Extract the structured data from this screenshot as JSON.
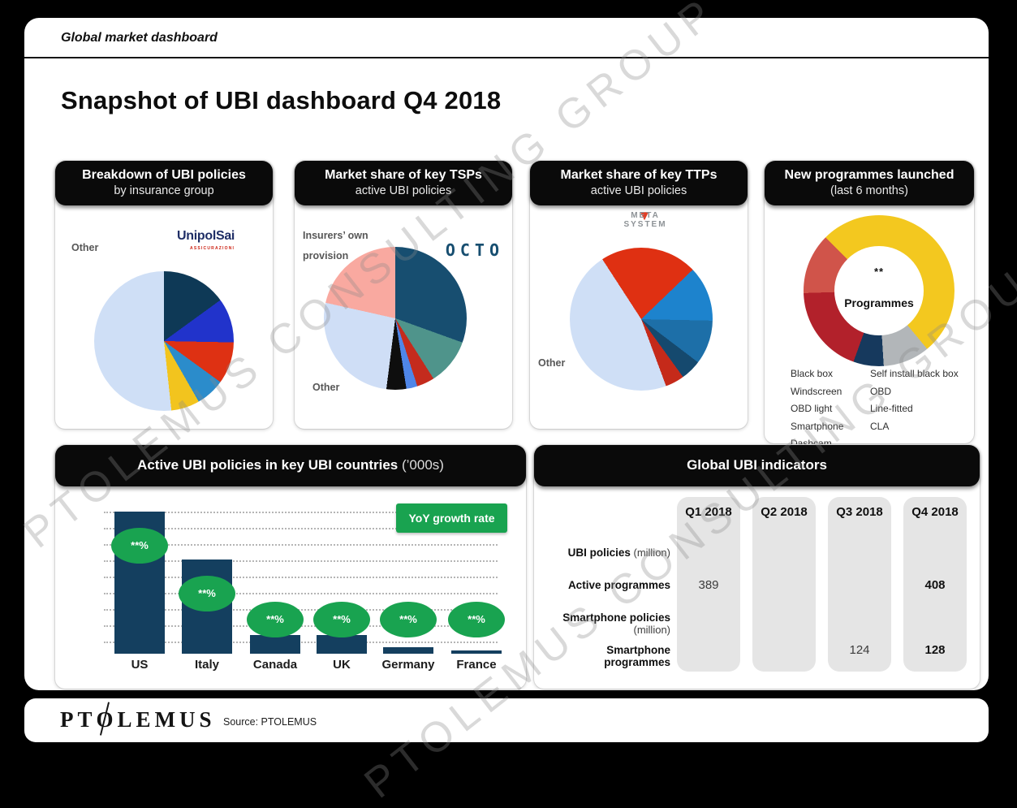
{
  "page": {
    "eyebrow": "Global market dashboard",
    "title": "Snapshot of UBI dashboard Q4 2018",
    "watermark": "PTOLEMUS CONSULTING GROUP COPY RIGHT",
    "footer": {
      "logo": "PTOLEMUS",
      "source": "Source: PTOLEMUS"
    }
  },
  "panels": {
    "insurance_pie": {
      "title": "Breakdown of UBI policies",
      "subtitle": "by insurance group",
      "other_label": "Other",
      "logo_main": "UnipolSai",
      "logo_sub": "ASSICURAZIONI"
    },
    "tsp_pie": {
      "title": "Market share of key TSPs",
      "subtitle": "active UBI policies",
      "own_label_line1": "Insurers’ own",
      "own_label_line2": "provision",
      "other_label": "Other",
      "logo": "OCTO"
    },
    "ttp_pie": {
      "title": "Market share of key TTPs",
      "subtitle": "active UBI policies",
      "other_label": "Other",
      "logo_line1": "META",
      "logo_line2": "SYSTEM",
      "logo_triangle": "▼"
    },
    "programmes_donut": {
      "title": "New programmes launched",
      "subtitle": "(last 6 months)",
      "center_value": "**",
      "center_label": "Programmes",
      "legend_col1": [
        "Black box",
        "Windscreen",
        "OBD light",
        "Smartphone",
        "Dashcam"
      ],
      "legend_col2": [
        "Self install black box",
        "OBD",
        "Line-fitted",
        "CLA"
      ]
    },
    "countries_bar": {
      "title": "Active UBI policies in key UBI countries",
      "unit_suffix": " (’000s)",
      "legend_button": "YoY growth rate"
    },
    "indicators": {
      "title": "Global UBI indicators",
      "columns": [
        "Q1 2018",
        "Q2 2018",
        "Q3 2018",
        "Q4 2018"
      ],
      "rows": [
        {
          "label": "UBI policies",
          "unit": " (million)",
          "values": [
            "",
            "",
            "",
            ""
          ]
        },
        {
          "label": "Active programmes",
          "unit": "",
          "values": [
            "389",
            "",
            "",
            "408"
          ]
        },
        {
          "label": "Smartphone policies",
          "unit": " (million)",
          "values": [
            "",
            "",
            "",
            ""
          ]
        },
        {
          "label": "Smartphone programmes",
          "unit": "",
          "values": [
            "",
            "",
            "124",
            "128"
          ]
        }
      ],
      "bold_column": "Q4 2018"
    }
  },
  "chart_data": [
    {
      "type": "pie",
      "title": "Breakdown of UBI policies by insurance group",
      "start_angle": 0,
      "slices": [
        {
          "label": "UnipolSai",
          "value": 15.0,
          "color": "#0e3956"
        },
        {
          "label": "unnamed insurer 2",
          "value": 10.3,
          "color": "#2133cb"
        },
        {
          "label": "unnamed insurer 3",
          "value": 9.7,
          "color": "#de3113"
        },
        {
          "label": "unnamed insurer 4",
          "value": 6.7,
          "color": "#2b8ccb"
        },
        {
          "label": "unnamed insurer 5",
          "value": 6.6,
          "color": "#f2c41e"
        },
        {
          "label": "Other",
          "value": 51.7,
          "color": "#cfdff6"
        }
      ],
      "note": "values estimated from slice angles; no numeric labels shown"
    },
    {
      "type": "pie",
      "title": "Market share of key TSPs — active UBI policies",
      "start_angle": 0,
      "slices": [
        {
          "label": "OCTO",
          "value": 30.5,
          "color": "#174e70"
        },
        {
          "label": "unnamed TSP 2",
          "value": 10.5,
          "color": "#4f948b"
        },
        {
          "label": "unnamed TSP 3",
          "value": 4.0,
          "color": "#c42b1d"
        },
        {
          "label": "unnamed TSP 4",
          "value": 2.5,
          "color": "#4f86e8"
        },
        {
          "label": "unnamed TSP 5",
          "value": 4.5,
          "color": "#0e0e0e"
        },
        {
          "label": "Other",
          "value": 26.5,
          "color": "#cfdef6"
        },
        {
          "label": "Insurers' own provision",
          "value": 21.5,
          "color": "#f9a9a0"
        }
      ],
      "note": "values estimated from slice angles; no numeric labels shown"
    },
    {
      "type": "pie",
      "title": "Market share of key TTPs — active UBI policies",
      "start_angle": -33,
      "slices": [
        {
          "label": "Meta System",
          "value": 22.0,
          "color": "#df3012"
        },
        {
          "label": "unnamed TTP 2",
          "value": 12.5,
          "color": "#1d83cd"
        },
        {
          "label": "unnamed TTP 3",
          "value": 10.0,
          "color": "#1d6fa8"
        },
        {
          "label": "unnamed TTP 4",
          "value": 4.7,
          "color": "#15496e"
        },
        {
          "label": "unnamed TTP 5",
          "value": 4.3,
          "color": "#c52a1a"
        },
        {
          "label": "Other",
          "value": 46.5,
          "color": "#cfdff6"
        }
      ],
      "note": "values estimated from slice angles; no numeric labels shown"
    },
    {
      "type": "pie",
      "subtype": "donut",
      "title": "New programmes launched (last 6 months)",
      "start_angle": -45,
      "center_value": "**",
      "center_label": "Programmes",
      "slices": [
        {
          "label": "Black box",
          "value": 51.5,
          "color": "#f3c81f"
        },
        {
          "label": "Self install black box",
          "value": 10.0,
          "color": "#b2b6b9"
        },
        {
          "label": "OBD / Line-fitted / CLA group",
          "value": 6.5,
          "color": "#16395d"
        },
        {
          "label": "Windscreen / OBD light group",
          "value": 19.0,
          "color": "#b2212b"
        },
        {
          "label": "Smartphone / Dashcam group",
          "value": 13.0,
          "color": "#d0544a"
        }
      ],
      "legend": [
        "Black box",
        "Windscreen",
        "OBD light",
        "Smartphone",
        "Dashcam",
        "Self install black box",
        "OBD",
        "Line-fitted",
        "CLA"
      ],
      "note": "total masked as **; slice shares estimated from angles"
    },
    {
      "type": "bar",
      "title": "Active UBI policies in key UBI countries (’000s)",
      "categories": [
        "US",
        "Italy",
        "Canada",
        "UK",
        "Germany",
        "France"
      ],
      "values": [
        100,
        66,
        13,
        13,
        4.5,
        2
      ],
      "values_unit": "relative bar height, % of US bar (numeric values not shown)",
      "bar_labels": [
        "**%",
        "**%",
        "**%",
        "**%",
        "**%",
        "**%"
      ],
      "bar_label_meaning": "YoY growth rate (masked)",
      "bar_color": "#143f5f",
      "label_color": "#19a350",
      "grid": "horizontal dotted",
      "legend": [
        "YoY growth rate"
      ]
    },
    {
      "type": "table",
      "title": "Global UBI indicators",
      "columns": [
        "",
        "Q1 2018",
        "Q2 2018",
        "Q3 2018",
        "Q4 2018"
      ],
      "rows": [
        [
          "UBI policies (million)",
          "",
          "",
          "",
          ""
        ],
        [
          "Active programmes",
          "389",
          "",
          "",
          "408"
        ],
        [
          "Smartphone policies (million)",
          "",
          "",
          "",
          ""
        ],
        [
          "Smartphone programmes",
          "",
          "",
          "124",
          "128"
        ]
      ]
    }
  ],
  "colors": {
    "accent_green": "#19a350",
    "bar_navy": "#143f5f",
    "header_black": "#0a0a0a",
    "pill_gray": "#e5e5e5"
  }
}
